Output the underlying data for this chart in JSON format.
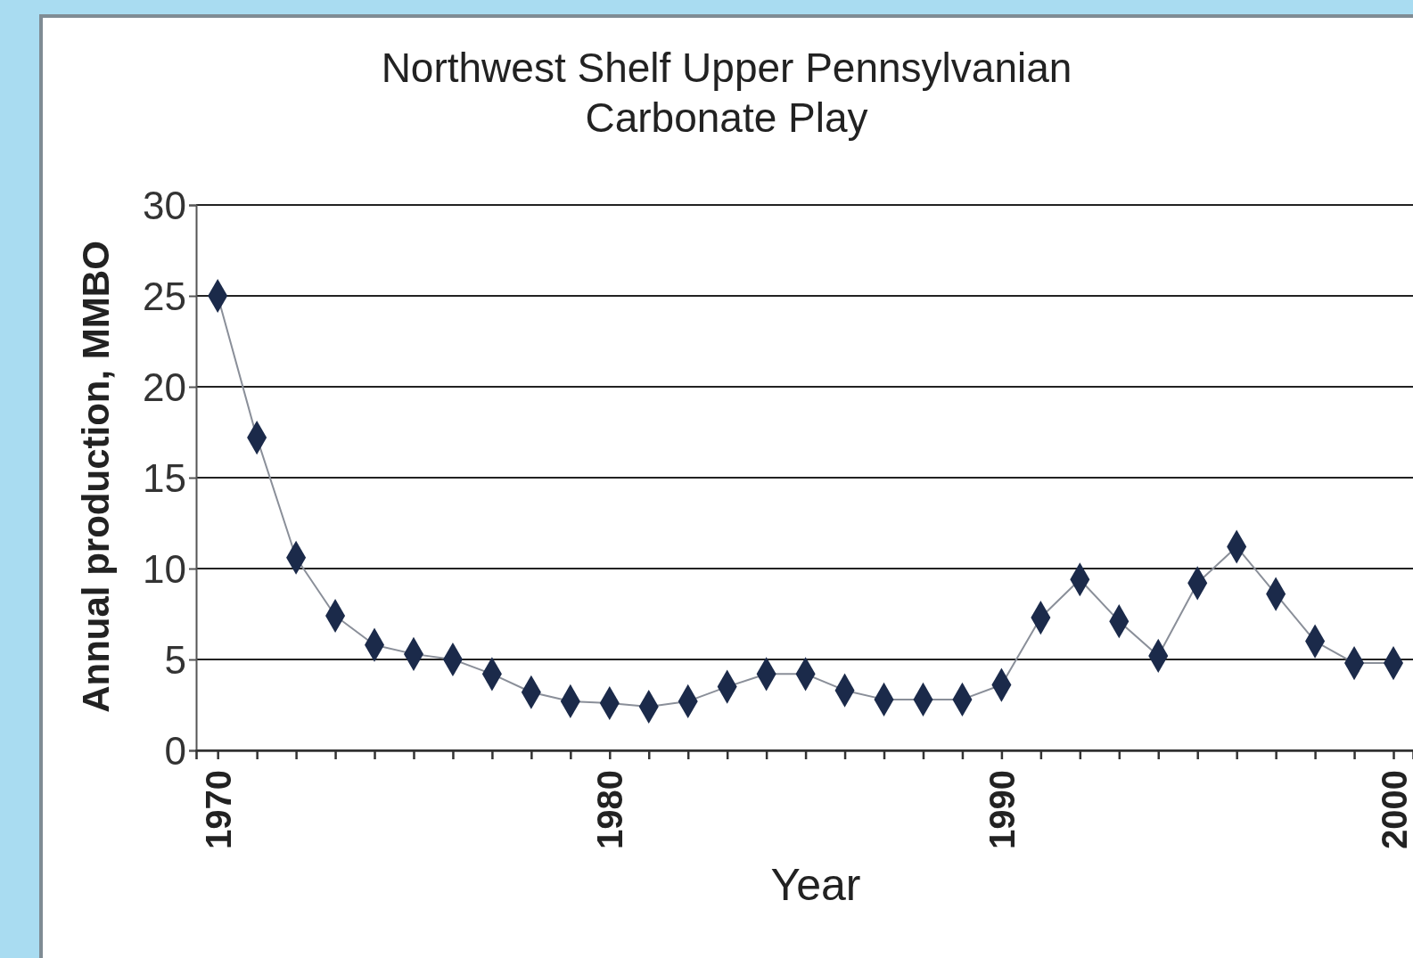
{
  "chart_data": {
    "type": "line",
    "title": "Northwest Shelf Upper Pennsylvanian\nCarbonate Play",
    "xlabel": "Year",
    "ylabel": "Annual production, MMBO",
    "x": [
      1970,
      1971,
      1972,
      1973,
      1974,
      1975,
      1976,
      1977,
      1978,
      1979,
      1980,
      1981,
      1982,
      1983,
      1984,
      1985,
      1986,
      1987,
      1988,
      1989,
      1990,
      1991,
      1992,
      1993,
      1994,
      1995,
      1996,
      1997,
      1998,
      1999,
      2000
    ],
    "series": [
      {
        "color": "#1b2a4a",
        "values": [
          25,
          17.2,
          10.6,
          7.4,
          5.8,
          5.3,
          5.0,
          4.2,
          3.2,
          2.7,
          2.6,
          2.4,
          2.7,
          3.5,
          4.2,
          4.2,
          3.3,
          2.8,
          2.8,
          2.8,
          3.6,
          7.3,
          9.4,
          7.1,
          5.2,
          9.2,
          11.2,
          8.6,
          6.0,
          4.8,
          4.8
        ]
      }
    ],
    "xlim": [
      1969.45,
      2000.5
    ],
    "xticks": [
      1970,
      {
        "value": 1971,
        "label": null
      },
      {
        "value": 1972,
        "label": null
      },
      {
        "value": 1973,
        "label": null
      },
      {
        "value": 1974,
        "label": null
      },
      {
        "value": 1975,
        "label": null
      },
      {
        "value": 1976,
        "label": null
      },
      {
        "value": 1977,
        "label": null
      },
      {
        "value": 1978,
        "label": null
      },
      {
        "value": 1979,
        "label": null
      },
      1980,
      {
        "value": 1981,
        "label": null
      },
      {
        "value": 1982,
        "label": null
      },
      {
        "value": 1983,
        "label": null
      },
      {
        "value": 1984,
        "label": null
      },
      {
        "value": 1985,
        "label": null
      },
      {
        "value": 1986,
        "label": null
      },
      {
        "value": 1987,
        "label": null
      },
      {
        "value": 1988,
        "label": null
      },
      {
        "value": 1989,
        "label": null
      },
      1990,
      {
        "value": 1991,
        "label": null
      },
      {
        "value": 1992,
        "label": null
      },
      {
        "value": 1993,
        "label": null
      },
      {
        "value": 1994,
        "label": null
      },
      {
        "value": 1995,
        "label": null
      },
      {
        "value": 1996,
        "label": null
      },
      {
        "value": 1997,
        "label": null
      },
      {
        "value": 1998,
        "label": null
      },
      {
        "value": 1999,
        "label": null
      },
      2000
    ],
    "ylim": [
      0,
      30
    ],
    "yticks": [
      0,
      5,
      10,
      15,
      20,
      25,
      30
    ],
    "grid": "y",
    "marker": "diamond",
    "line_style": "solid"
  }
}
